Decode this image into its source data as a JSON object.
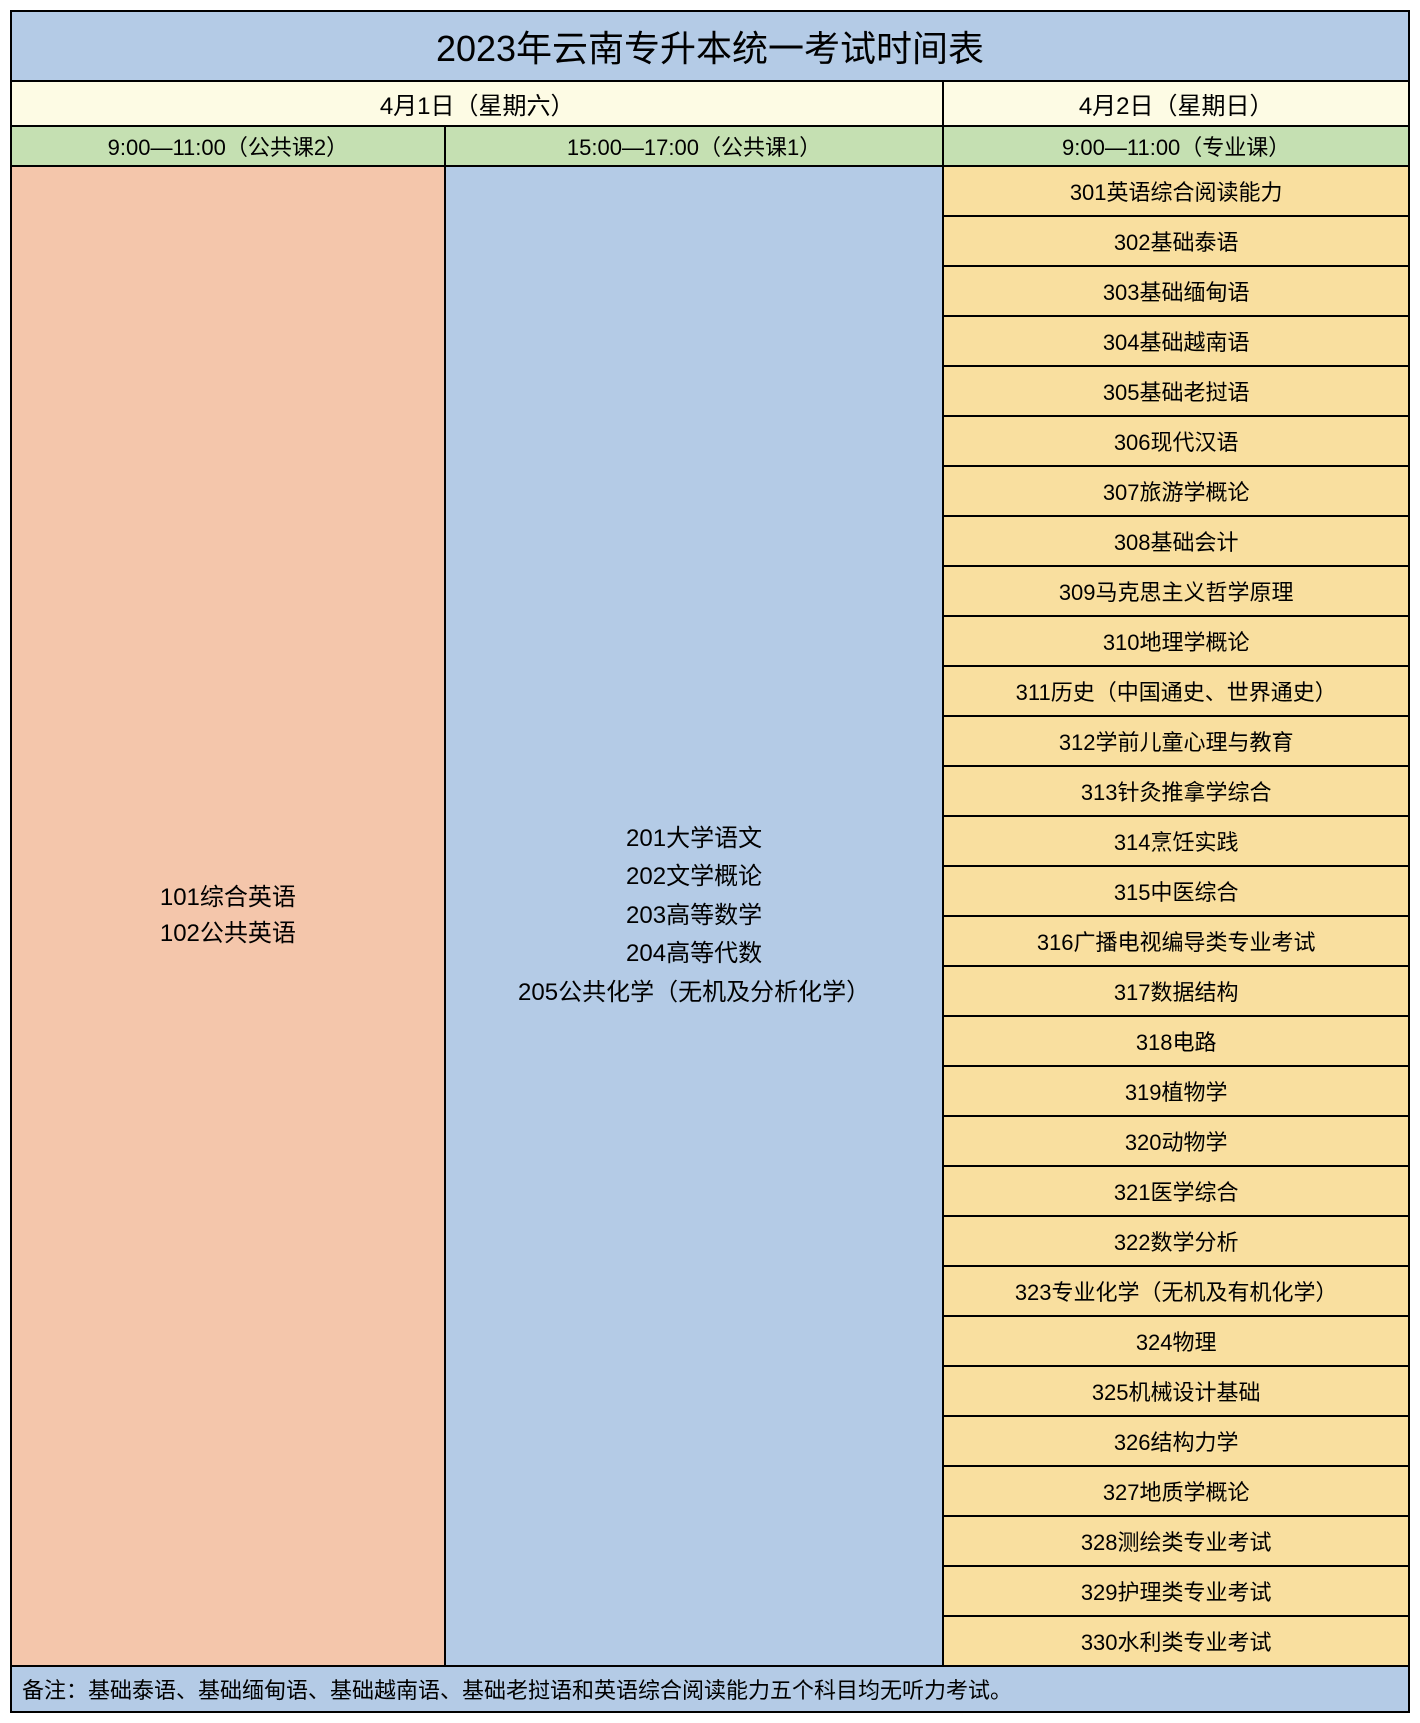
{
  "title": "2023年云南专升本统一考试时间表",
  "dates": {
    "day1": "4月1日（星期六）",
    "day2": "4月2日（星期日）"
  },
  "timeslots": {
    "slot1": "9:00—11:00（公共课2）",
    "slot2": "15:00—17:00（公共课1）",
    "slot3": "9:00—11:00（专业课）"
  },
  "col1_subjects": [
    "101综合英语",
    "102公共英语"
  ],
  "col2_subjects": [
    "201大学语文",
    "202文学概论",
    "203高等数学",
    "204高等代数",
    "205公共化学（无机及分析化学）"
  ],
  "col3_subjects": [
    "301英语综合阅读能力",
    "302基础泰语",
    "303基础缅甸语",
    "304基础越南语",
    "305基础老挝语",
    "306现代汉语",
    "307旅游学概论",
    "308基础会计",
    "309马克思主义哲学原理",
    "310地理学概论",
    "311历史（中国通史、世界通史）",
    "312学前儿童心理与教育",
    "313针灸推拿学综合",
    "314烹饪实践",
    "315中医综合",
    "316广播电视编导类专业考试",
    "317数据结构",
    "318电路",
    "319植物学",
    "320动物学",
    "321医学综合",
    "322数学分析",
    "323专业化学（无机及有机化学）",
    "324物理",
    "325机械设计基础",
    "326结构力学",
    "327地质学概论",
    "328测绘类专业考试",
    "329护理类专业考试",
    "330水利类专业考试"
  ],
  "note": "备注：基础泰语、基础缅甸语、基础越南语、基础老挝语和英语综合阅读能力五个科目均无听力考试。",
  "colors": {
    "title_bg": "#b4cbe6",
    "date_bg": "#fdfbe4",
    "time_bg": "#c5e0b2",
    "col1_bg": "#f4c6ab",
    "col2_bg": "#b4cbe6",
    "col3_bg": "#f9df9f",
    "note_bg": "#b4cbe6",
    "border": "#000000"
  }
}
